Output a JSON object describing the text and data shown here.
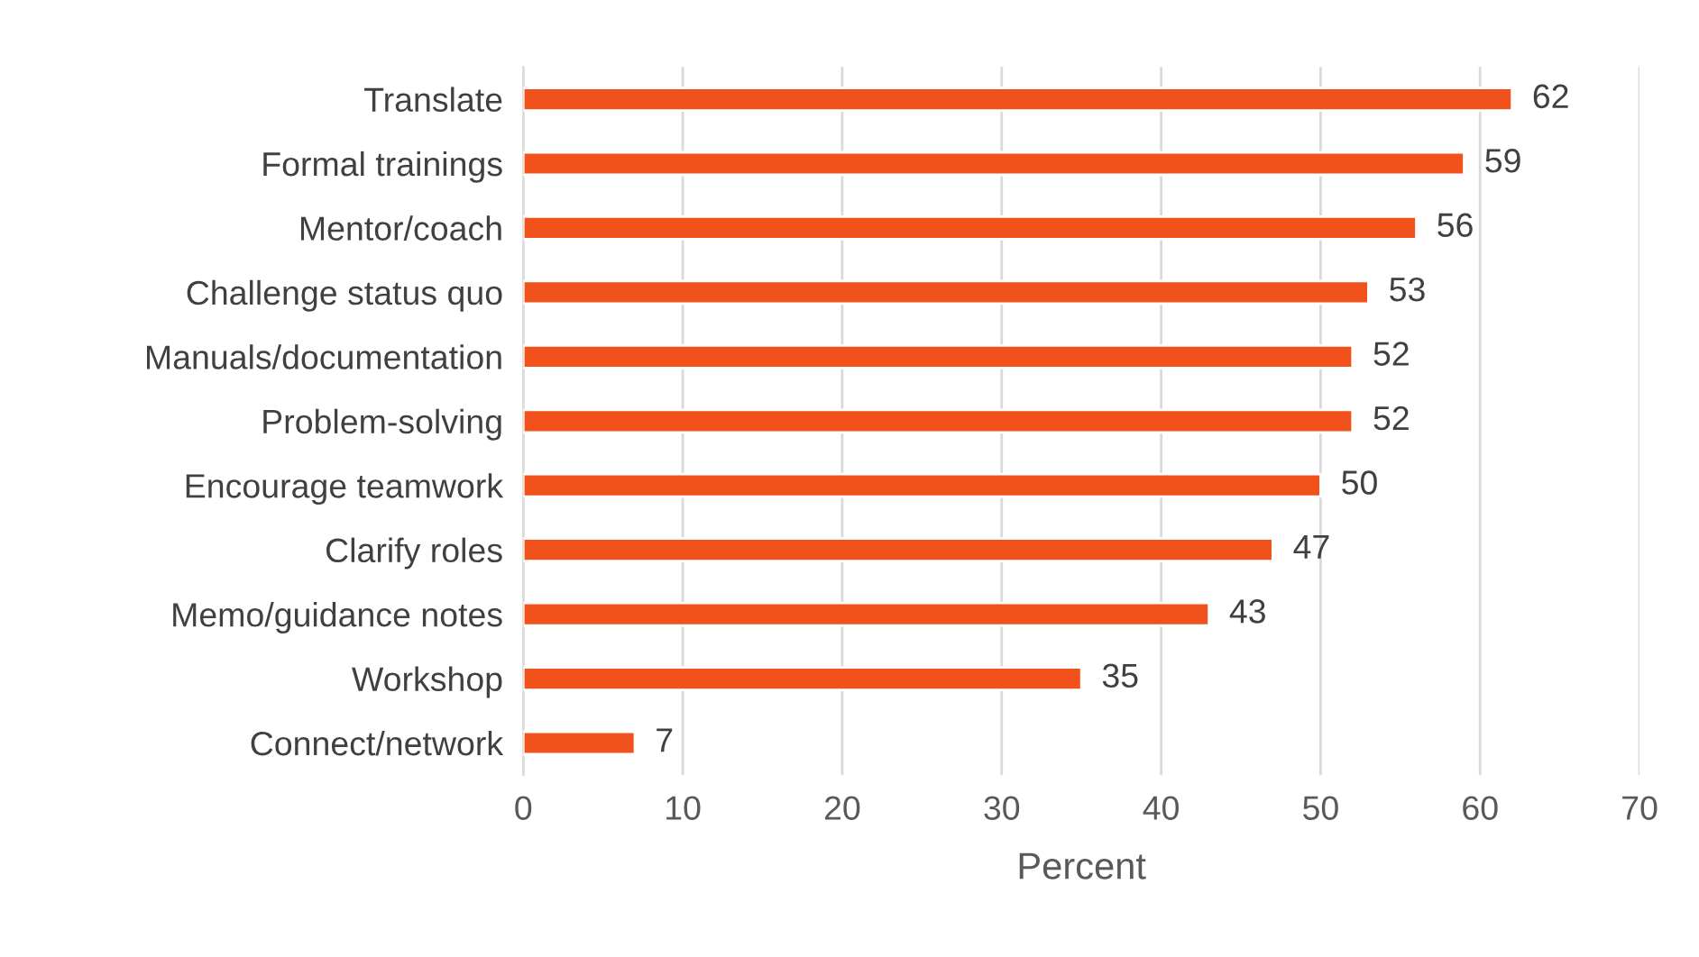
{
  "chart_data": {
    "type": "bar",
    "orientation": "horizontal",
    "xlabel": "Percent",
    "categories": [
      "Translate",
      "Formal trainings",
      "Mentor/coach",
      "Challenge status quo",
      "Manuals/documentation",
      "Problem-solving",
      "Encourage teamwork",
      "Clarify roles",
      "Memo/guidance notes",
      "Workshop",
      "Connect/network"
    ],
    "values": [
      62,
      59,
      56,
      53,
      52,
      52,
      50,
      47,
      43,
      35,
      7
    ],
    "color": "#f1511b",
    "xlim": [
      0,
      70
    ],
    "xticks": [
      0,
      10,
      20,
      30,
      40,
      50,
      60,
      70
    ],
    "grid": "x",
    "data_labels": true
  }
}
